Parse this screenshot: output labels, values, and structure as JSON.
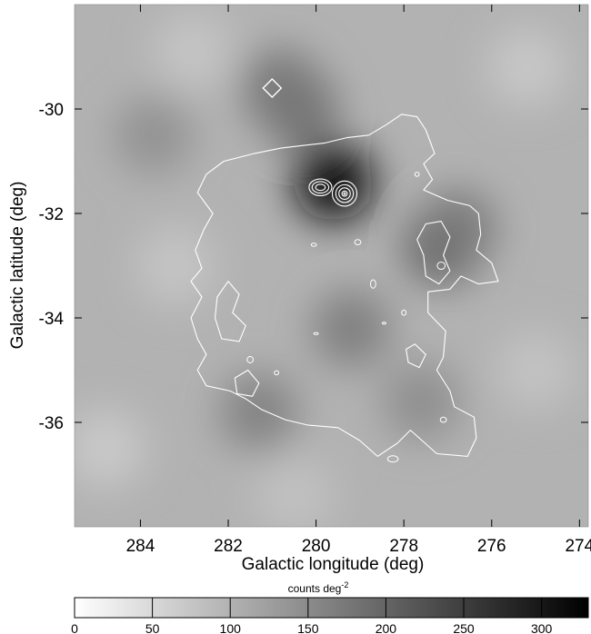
{
  "chart_data": {
    "type": "heatmap",
    "title": "",
    "xlabel": "Galactic longitude (deg)",
    "ylabel": "Galactic latitude (deg)",
    "x_reversed": true,
    "xlim": [
      285.5,
      273.8
    ],
    "ylim": [
      -38.0,
      -28.0
    ],
    "x_ticks": [
      {
        "value": 284,
        "label": "284"
      },
      {
        "value": 282,
        "label": "282"
      },
      {
        "value": 280,
        "label": "280"
      },
      {
        "value": 278,
        "label": "278"
      },
      {
        "value": 276,
        "label": "276"
      },
      {
        "value": 274,
        "label": "274"
      }
    ],
    "y_ticks": [
      {
        "value": -30,
        "label": "-30"
      },
      {
        "value": -32,
        "label": "-32"
      },
      {
        "value": -34,
        "label": "-34"
      },
      {
        "value": -36,
        "label": "-36"
      }
    ],
    "colorbar": {
      "label_text": "counts deg",
      "label_exponent": "-2",
      "range": [
        0,
        330
      ],
      "colormap": "white-to-black grayscale",
      "ticks": [
        {
          "value": 0,
          "label": "0"
        },
        {
          "value": 50,
          "label": "50"
        },
        {
          "value": 100,
          "label": "100"
        },
        {
          "value": 150,
          "label": "150"
        },
        {
          "value": 200,
          "label": "200"
        },
        {
          "value": 250,
          "label": "250"
        },
        {
          "value": 300,
          "label": "300"
        }
      ]
    },
    "background_level": 100,
    "intensity_peaks": [
      {
        "l": 279.6,
        "b": -31.4,
        "peak": 310
      },
      {
        "l": 280.4,
        "b": -30.0,
        "peak": 185
      },
      {
        "l": 280.8,
        "b": -29.6,
        "peak": 175
      },
      {
        "l": 277.1,
        "b": -32.6,
        "peak": 215
      },
      {
        "l": 276.8,
        "b": -32.3,
        "peak": 175
      },
      {
        "l": 279.2,
        "b": -34.2,
        "peak": 165
      },
      {
        "l": 281.3,
        "b": -35.8,
        "peak": 160
      },
      {
        "l": 277.6,
        "b": -35.6,
        "peak": 145
      },
      {
        "l": 283.7,
        "b": -30.5,
        "peak": 140
      },
      {
        "l": 283.2,
        "b": -33.0,
        "peak": 75
      },
      {
        "l": 275.2,
        "b": -29.2,
        "peak": 72
      },
      {
        "l": 275.0,
        "b": -35.0,
        "peak": 78
      },
      {
        "l": 284.8,
        "b": -36.5,
        "peak": 70
      },
      {
        "l": 280.5,
        "b": -37.4,
        "peak": 80
      },
      {
        "l": 282.8,
        "b": -28.9,
        "peak": 75
      }
    ],
    "source_marker": {
      "shape": "diamond",
      "l": 281.0,
      "b": -29.6,
      "color": "#ffffff"
    },
    "contour_color": "#ffffff",
    "outer_contour": [
      [
        278.05,
        -30.1
      ],
      [
        277.7,
        -30.15
      ],
      [
        277.5,
        -30.4
      ],
      [
        277.3,
        -30.85
      ],
      [
        277.55,
        -31.05
      ],
      [
        277.35,
        -31.35
      ],
      [
        277.55,
        -31.55
      ],
      [
        277.0,
        -31.75
      ],
      [
        276.5,
        -31.85
      ],
      [
        276.3,
        -32.0
      ],
      [
        276.25,
        -32.4
      ],
      [
        276.35,
        -32.7
      ],
      [
        276.0,
        -32.95
      ],
      [
        275.85,
        -33.3
      ],
      [
        276.3,
        -33.35
      ],
      [
        276.7,
        -33.2
      ],
      [
        276.95,
        -33.45
      ],
      [
        277.45,
        -33.5
      ],
      [
        277.45,
        -33.9
      ],
      [
        277.05,
        -34.25
      ],
      [
        277.1,
        -34.75
      ],
      [
        277.25,
        -35.0
      ],
      [
        276.95,
        -35.4
      ],
      [
        276.85,
        -35.7
      ],
      [
        276.4,
        -35.9
      ],
      [
        276.35,
        -36.3
      ],
      [
        276.55,
        -36.65
      ],
      [
        277.25,
        -36.6
      ],
      [
        277.85,
        -36.15
      ],
      [
        278.15,
        -36.4
      ],
      [
        278.6,
        -36.65
      ],
      [
        279.0,
        -36.35
      ],
      [
        279.5,
        -36.1
      ],
      [
        280.2,
        -36.05
      ],
      [
        280.7,
        -35.95
      ],
      [
        281.25,
        -35.75
      ],
      [
        281.6,
        -35.55
      ],
      [
        281.95,
        -35.4
      ],
      [
        282.5,
        -35.3
      ],
      [
        282.7,
        -35.0
      ],
      [
        282.5,
        -34.7
      ],
      [
        282.7,
        -34.4
      ],
      [
        282.85,
        -34.0
      ],
      [
        282.6,
        -33.6
      ],
      [
        282.85,
        -33.3
      ],
      [
        282.6,
        -33.05
      ],
      [
        282.75,
        -32.7
      ],
      [
        282.55,
        -32.3
      ],
      [
        282.35,
        -32.0
      ],
      [
        282.7,
        -31.6
      ],
      [
        282.5,
        -31.25
      ],
      [
        282.1,
        -31.0
      ],
      [
        281.4,
        -30.85
      ],
      [
        280.8,
        -30.75
      ],
      [
        280.3,
        -30.7
      ],
      [
        279.8,
        -30.65
      ],
      [
        279.3,
        -30.55
      ],
      [
        278.8,
        -30.5
      ],
      [
        278.4,
        -30.3
      ],
      [
        278.05,
        -30.1
      ]
    ],
    "inner_contours": [
      {
        "name": "west-island",
        "points": [
          [
            277.15,
            -32.15
          ],
          [
            276.95,
            -32.45
          ],
          [
            277.1,
            -32.8
          ],
          [
            276.95,
            -33.1
          ],
          [
            277.2,
            -33.35
          ],
          [
            277.5,
            -33.2
          ],
          [
            277.55,
            -32.8
          ],
          [
            277.7,
            -32.5
          ],
          [
            277.5,
            -32.2
          ],
          [
            277.15,
            -32.15
          ]
        ]
      },
      {
        "name": "east-island",
        "points": [
          [
            282.0,
            -33.3
          ],
          [
            281.75,
            -33.55
          ],
          [
            281.9,
            -33.9
          ],
          [
            281.6,
            -34.15
          ],
          [
            281.75,
            -34.45
          ],
          [
            282.15,
            -34.4
          ],
          [
            282.3,
            -34.0
          ],
          [
            282.25,
            -33.6
          ],
          [
            282.0,
            -33.3
          ]
        ]
      },
      {
        "name": "southeast-pocket",
        "points": [
          [
            281.55,
            -35.0
          ],
          [
            281.3,
            -35.25
          ],
          [
            281.45,
            -35.5
          ],
          [
            281.8,
            -35.45
          ],
          [
            281.85,
            -35.15
          ],
          [
            281.55,
            -35.0
          ]
        ]
      },
      {
        "name": "south-hole",
        "points": [
          [
            277.75,
            -34.5
          ],
          [
            277.5,
            -34.7
          ],
          [
            277.65,
            -34.95
          ],
          [
            277.9,
            -34.85
          ],
          [
            277.95,
            -34.6
          ],
          [
            277.75,
            -34.5
          ]
        ]
      }
    ],
    "peak_contours": [
      {
        "name": "peak-a",
        "l": 279.35,
        "b": -31.62,
        "levels": [
          [
            0.28,
            0.24
          ],
          [
            0.2,
            0.17
          ],
          [
            0.13,
            0.11
          ],
          [
            0.06,
            0.05
          ],
          [
            0.02,
            0.02
          ]
        ]
      },
      {
        "name": "peak-b",
        "l": 279.9,
        "b": -31.5,
        "levels": [
          [
            0.26,
            0.16
          ],
          [
            0.19,
            0.11
          ],
          [
            0.11,
            0.06
          ]
        ]
      }
    ],
    "small_contours": [
      {
        "l": 280.05,
        "b": -32.6,
        "rx": 0.06,
        "ry": 0.03
      },
      {
        "l": 279.05,
        "b": -32.55,
        "rx": 0.07,
        "ry": 0.05
      },
      {
        "l": 278.7,
        "b": -33.35,
        "rx": 0.06,
        "ry": 0.08
      },
      {
        "l": 278.0,
        "b": -33.9,
        "rx": 0.05,
        "ry": 0.05
      },
      {
        "l": 277.15,
        "b": -33.0,
        "rx": 0.09,
        "ry": 0.07
      },
      {
        "l": 280.0,
        "b": -34.3,
        "rx": 0.05,
        "ry": 0.02
      },
      {
        "l": 278.45,
        "b": -34.1,
        "rx": 0.04,
        "ry": 0.02
      },
      {
        "l": 278.25,
        "b": -36.7,
        "rx": 0.12,
        "ry": 0.06
      },
      {
        "l": 277.1,
        "b": -35.95,
        "rx": 0.07,
        "ry": 0.05
      },
      {
        "l": 281.5,
        "b": -34.8,
        "rx": 0.07,
        "ry": 0.06
      },
      {
        "l": 280.9,
        "b": -35.05,
        "rx": 0.05,
        "ry": 0.04
      },
      {
        "l": 277.7,
        "b": -31.25,
        "rx": 0.05,
        "ry": 0.04
      }
    ]
  }
}
